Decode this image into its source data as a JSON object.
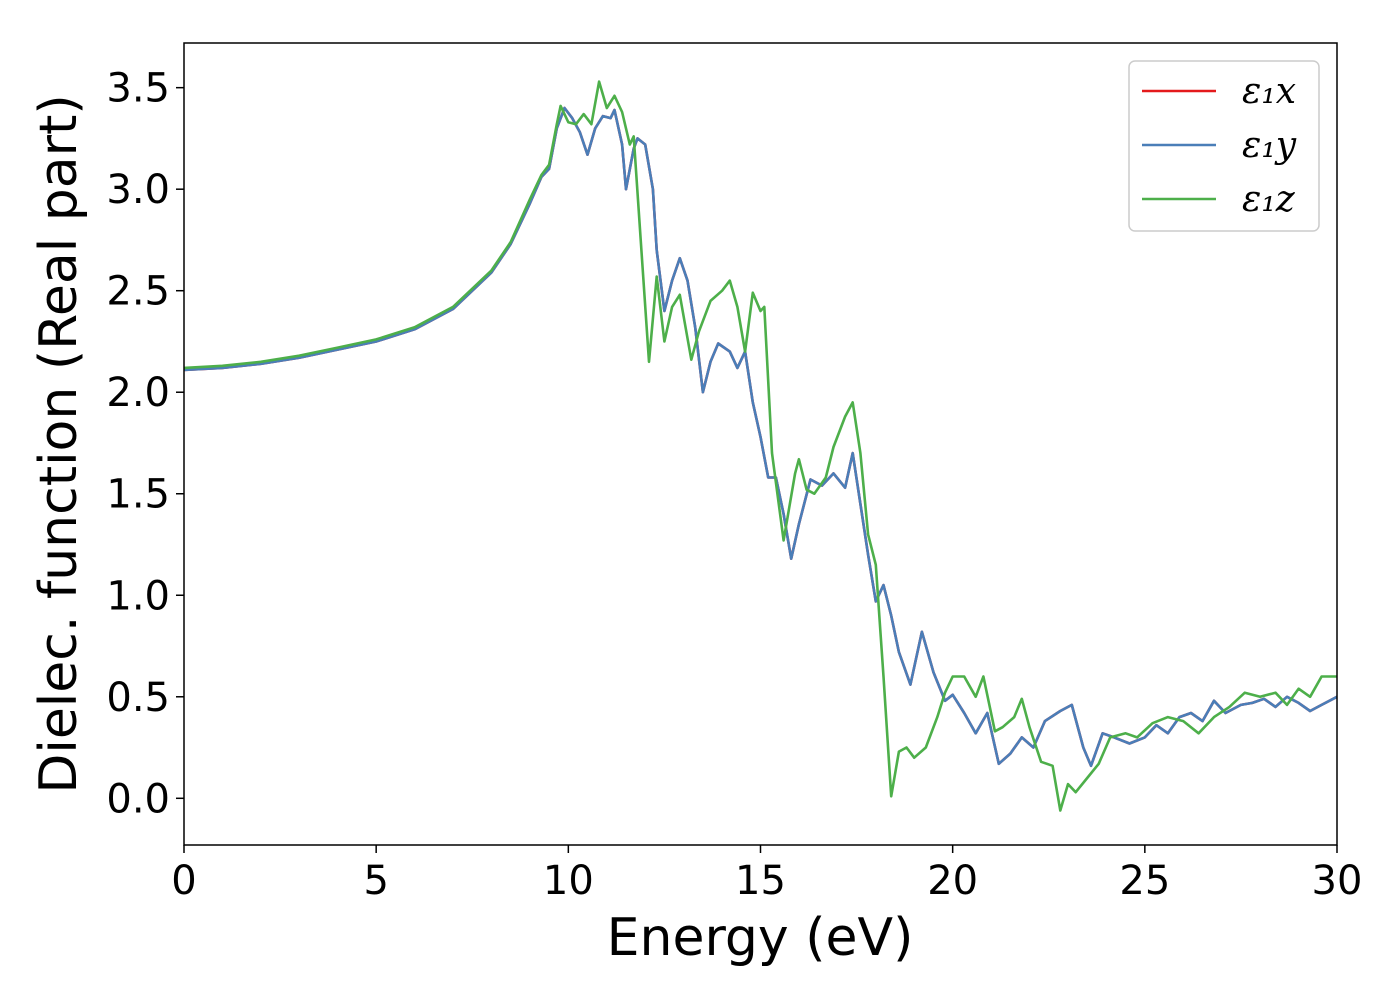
{
  "chart_data": {
    "type": "line",
    "title": "",
    "xlabel": "Energy (eV)",
    "ylabel": "Dielec. function (Real part)",
    "xlim": [
      0,
      30
    ],
    "ylim": [
      -0.23,
      3.72
    ],
    "xticks": [
      0,
      5,
      10,
      15,
      20,
      25,
      30
    ],
    "yticks": [
      0.0,
      0.5,
      1.0,
      1.5,
      2.0,
      2.5,
      3.0,
      3.5
    ],
    "xtick_labels": [
      "0",
      "5",
      "10",
      "15",
      "20",
      "25",
      "30"
    ],
    "ytick_labels": [
      "0.0",
      "0.5",
      "1.0",
      "1.5",
      "2.0",
      "2.5",
      "3.0",
      "3.5"
    ],
    "grid": false,
    "legend_position": "top-right",
    "series": [
      {
        "name": "ε₁x",
        "color": "#e41a1c",
        "points": [
          [
            0,
            2.11
          ],
          [
            1,
            2.12
          ],
          [
            2,
            2.14
          ],
          [
            3,
            2.17
          ],
          [
            4,
            2.21
          ],
          [
            5,
            2.25
          ],
          [
            6,
            2.31
          ],
          [
            7,
            2.41
          ],
          [
            8,
            2.59
          ],
          [
            8.5,
            2.73
          ],
          [
            9,
            2.93
          ],
          [
            9.3,
            3.06
          ],
          [
            9.5,
            3.1
          ],
          [
            9.7,
            3.3
          ],
          [
            9.9,
            3.4
          ],
          [
            10.1,
            3.35
          ],
          [
            10.3,
            3.28
          ],
          [
            10.5,
            3.17
          ],
          [
            10.7,
            3.3
          ],
          [
            10.9,
            3.36
          ],
          [
            11.1,
            3.35
          ],
          [
            11.2,
            3.39
          ],
          [
            11.4,
            3.22
          ],
          [
            11.5,
            3.0
          ],
          [
            11.7,
            3.2
          ],
          [
            11.8,
            3.25
          ],
          [
            12.0,
            3.22
          ],
          [
            12.2,
            3.0
          ],
          [
            12.3,
            2.7
          ],
          [
            12.5,
            2.4
          ],
          [
            12.7,
            2.55
          ],
          [
            12.9,
            2.66
          ],
          [
            13.1,
            2.55
          ],
          [
            13.3,
            2.32
          ],
          [
            13.5,
            2.0
          ],
          [
            13.7,
            2.15
          ],
          [
            13.9,
            2.24
          ],
          [
            14.2,
            2.2
          ],
          [
            14.4,
            2.12
          ],
          [
            14.6,
            2.2
          ],
          [
            14.8,
            1.95
          ],
          [
            15.0,
            1.78
          ],
          [
            15.2,
            1.58
          ],
          [
            15.4,
            1.58
          ],
          [
            15.6,
            1.4
          ],
          [
            15.8,
            1.18
          ],
          [
            16.0,
            1.35
          ],
          [
            16.3,
            1.57
          ],
          [
            16.6,
            1.54
          ],
          [
            16.9,
            1.6
          ],
          [
            17.2,
            1.53
          ],
          [
            17.4,
            1.7
          ],
          [
            17.6,
            1.45
          ],
          [
            17.8,
            1.2
          ],
          [
            18.0,
            0.97
          ],
          [
            18.2,
            1.05
          ],
          [
            18.4,
            0.9
          ],
          [
            18.6,
            0.72
          ],
          [
            18.9,
            0.56
          ],
          [
            19.2,
            0.82
          ],
          [
            19.5,
            0.62
          ],
          [
            19.8,
            0.48
          ],
          [
            20.0,
            0.51
          ],
          [
            20.3,
            0.42
          ],
          [
            20.6,
            0.32
          ],
          [
            20.9,
            0.42
          ],
          [
            21.2,
            0.17
          ],
          [
            21.5,
            0.22
          ],
          [
            21.8,
            0.3
          ],
          [
            22.1,
            0.25
          ],
          [
            22.4,
            0.38
          ],
          [
            22.8,
            0.43
          ],
          [
            23.1,
            0.46
          ],
          [
            23.4,
            0.25
          ],
          [
            23.6,
            0.16
          ],
          [
            23.9,
            0.32
          ],
          [
            24.2,
            0.3
          ],
          [
            24.6,
            0.27
          ],
          [
            25.0,
            0.3
          ],
          [
            25.3,
            0.36
          ],
          [
            25.6,
            0.32
          ],
          [
            25.9,
            0.4
          ],
          [
            26.2,
            0.42
          ],
          [
            26.5,
            0.38
          ],
          [
            26.8,
            0.48
          ],
          [
            27.1,
            0.42
          ],
          [
            27.5,
            0.46
          ],
          [
            27.8,
            0.47
          ],
          [
            28.1,
            0.49
          ],
          [
            28.4,
            0.45
          ],
          [
            28.7,
            0.5
          ],
          [
            29.0,
            0.47
          ],
          [
            29.3,
            0.43
          ],
          [
            29.6,
            0.46
          ],
          [
            30.0,
            0.5
          ]
        ]
      },
      {
        "name": "ε₁y",
        "color": "#4a7eb8",
        "points": [
          [
            0,
            2.11
          ],
          [
            1,
            2.12
          ],
          [
            2,
            2.14
          ],
          [
            3,
            2.17
          ],
          [
            4,
            2.21
          ],
          [
            5,
            2.25
          ],
          [
            6,
            2.31
          ],
          [
            7,
            2.41
          ],
          [
            8,
            2.59
          ],
          [
            8.5,
            2.73
          ],
          [
            9,
            2.93
          ],
          [
            9.3,
            3.06
          ],
          [
            9.5,
            3.1
          ],
          [
            9.7,
            3.3
          ],
          [
            9.9,
            3.4
          ],
          [
            10.1,
            3.35
          ],
          [
            10.3,
            3.28
          ],
          [
            10.5,
            3.17
          ],
          [
            10.7,
            3.3
          ],
          [
            10.9,
            3.36
          ],
          [
            11.1,
            3.35
          ],
          [
            11.2,
            3.39
          ],
          [
            11.4,
            3.22
          ],
          [
            11.5,
            3.0
          ],
          [
            11.7,
            3.2
          ],
          [
            11.8,
            3.25
          ],
          [
            12.0,
            3.22
          ],
          [
            12.2,
            3.0
          ],
          [
            12.3,
            2.7
          ],
          [
            12.5,
            2.4
          ],
          [
            12.7,
            2.55
          ],
          [
            12.9,
            2.66
          ],
          [
            13.1,
            2.55
          ],
          [
            13.3,
            2.32
          ],
          [
            13.5,
            2.0
          ],
          [
            13.7,
            2.15
          ],
          [
            13.9,
            2.24
          ],
          [
            14.2,
            2.2
          ],
          [
            14.4,
            2.12
          ],
          [
            14.6,
            2.2
          ],
          [
            14.8,
            1.95
          ],
          [
            15.0,
            1.78
          ],
          [
            15.2,
            1.58
          ],
          [
            15.4,
            1.58
          ],
          [
            15.6,
            1.4
          ],
          [
            15.8,
            1.18
          ],
          [
            16.0,
            1.35
          ],
          [
            16.3,
            1.57
          ],
          [
            16.6,
            1.54
          ],
          [
            16.9,
            1.6
          ],
          [
            17.2,
            1.53
          ],
          [
            17.4,
            1.7
          ],
          [
            17.6,
            1.45
          ],
          [
            17.8,
            1.2
          ],
          [
            18.0,
            0.97
          ],
          [
            18.2,
            1.05
          ],
          [
            18.4,
            0.9
          ],
          [
            18.6,
            0.72
          ],
          [
            18.9,
            0.56
          ],
          [
            19.2,
            0.82
          ],
          [
            19.5,
            0.62
          ],
          [
            19.8,
            0.48
          ],
          [
            20.0,
            0.51
          ],
          [
            20.3,
            0.42
          ],
          [
            20.6,
            0.32
          ],
          [
            20.9,
            0.42
          ],
          [
            21.2,
            0.17
          ],
          [
            21.5,
            0.22
          ],
          [
            21.8,
            0.3
          ],
          [
            22.1,
            0.25
          ],
          [
            22.4,
            0.38
          ],
          [
            22.8,
            0.43
          ],
          [
            23.1,
            0.46
          ],
          [
            23.4,
            0.25
          ],
          [
            23.6,
            0.16
          ],
          [
            23.9,
            0.32
          ],
          [
            24.2,
            0.3
          ],
          [
            24.6,
            0.27
          ],
          [
            25.0,
            0.3
          ],
          [
            25.3,
            0.36
          ],
          [
            25.6,
            0.32
          ],
          [
            25.9,
            0.4
          ],
          [
            26.2,
            0.42
          ],
          [
            26.5,
            0.38
          ],
          [
            26.8,
            0.48
          ],
          [
            27.1,
            0.42
          ],
          [
            27.5,
            0.46
          ],
          [
            27.8,
            0.47
          ],
          [
            28.1,
            0.49
          ],
          [
            28.4,
            0.45
          ],
          [
            28.7,
            0.5
          ],
          [
            29.0,
            0.47
          ],
          [
            29.3,
            0.43
          ],
          [
            29.6,
            0.46
          ],
          [
            30.0,
            0.5
          ]
        ]
      },
      {
        "name": "ε₁z",
        "color": "#4daf4a",
        "points": [
          [
            0,
            2.12
          ],
          [
            1,
            2.13
          ],
          [
            2,
            2.15
          ],
          [
            3,
            2.18
          ],
          [
            4,
            2.22
          ],
          [
            5,
            2.26
          ],
          [
            6,
            2.32
          ],
          [
            7,
            2.42
          ],
          [
            8,
            2.6
          ],
          [
            8.5,
            2.74
          ],
          [
            9,
            2.95
          ],
          [
            9.3,
            3.07
          ],
          [
            9.5,
            3.12
          ],
          [
            9.7,
            3.32
          ],
          [
            9.8,
            3.41
          ],
          [
            10.0,
            3.33
          ],
          [
            10.2,
            3.32
          ],
          [
            10.4,
            3.37
          ],
          [
            10.6,
            3.32
          ],
          [
            10.8,
            3.53
          ],
          [
            11.0,
            3.4
          ],
          [
            11.2,
            3.46
          ],
          [
            11.4,
            3.38
          ],
          [
            11.6,
            3.22
          ],
          [
            11.7,
            3.26
          ],
          [
            11.9,
            2.7
          ],
          [
            12.1,
            2.15
          ],
          [
            12.3,
            2.57
          ],
          [
            12.5,
            2.25
          ],
          [
            12.7,
            2.42
          ],
          [
            12.9,
            2.48
          ],
          [
            13.2,
            2.16
          ],
          [
            13.4,
            2.3
          ],
          [
            13.7,
            2.45
          ],
          [
            14.0,
            2.5
          ],
          [
            14.2,
            2.55
          ],
          [
            14.4,
            2.42
          ],
          [
            14.6,
            2.2
          ],
          [
            14.8,
            2.49
          ],
          [
            15.0,
            2.4
          ],
          [
            15.1,
            2.42
          ],
          [
            15.3,
            1.7
          ],
          [
            15.6,
            1.27
          ],
          [
            15.9,
            1.6
          ],
          [
            16.0,
            1.67
          ],
          [
            16.2,
            1.52
          ],
          [
            16.4,
            1.5
          ],
          [
            16.7,
            1.58
          ],
          [
            16.9,
            1.73
          ],
          [
            17.2,
            1.88
          ],
          [
            17.4,
            1.95
          ],
          [
            17.6,
            1.7
          ],
          [
            17.8,
            1.3
          ],
          [
            18.0,
            1.15
          ],
          [
            18.2,
            0.6
          ],
          [
            18.4,
            0.01
          ],
          [
            18.6,
            0.23
          ],
          [
            18.8,
            0.25
          ],
          [
            19.0,
            0.2
          ],
          [
            19.3,
            0.25
          ],
          [
            19.6,
            0.4
          ],
          [
            19.8,
            0.52
          ],
          [
            20.0,
            0.6
          ],
          [
            20.3,
            0.6
          ],
          [
            20.6,
            0.5
          ],
          [
            20.8,
            0.6
          ],
          [
            21.1,
            0.33
          ],
          [
            21.3,
            0.35
          ],
          [
            21.6,
            0.4
          ],
          [
            21.8,
            0.49
          ],
          [
            22.0,
            0.35
          ],
          [
            22.3,
            0.18
          ],
          [
            22.6,
            0.16
          ],
          [
            22.8,
            -0.06
          ],
          [
            23.0,
            0.07
          ],
          [
            23.2,
            0.03
          ],
          [
            23.5,
            0.1
          ],
          [
            23.8,
            0.17
          ],
          [
            24.1,
            0.3
          ],
          [
            24.5,
            0.32
          ],
          [
            24.8,
            0.3
          ],
          [
            25.2,
            0.37
          ],
          [
            25.6,
            0.4
          ],
          [
            26.0,
            0.38
          ],
          [
            26.4,
            0.32
          ],
          [
            26.8,
            0.4
          ],
          [
            27.2,
            0.45
          ],
          [
            27.6,
            0.52
          ],
          [
            28.0,
            0.5
          ],
          [
            28.4,
            0.52
          ],
          [
            28.7,
            0.46
          ],
          [
            29.0,
            0.54
          ],
          [
            29.3,
            0.5
          ],
          [
            29.6,
            0.6
          ],
          [
            30.0,
            0.6
          ]
        ]
      }
    ]
  }
}
